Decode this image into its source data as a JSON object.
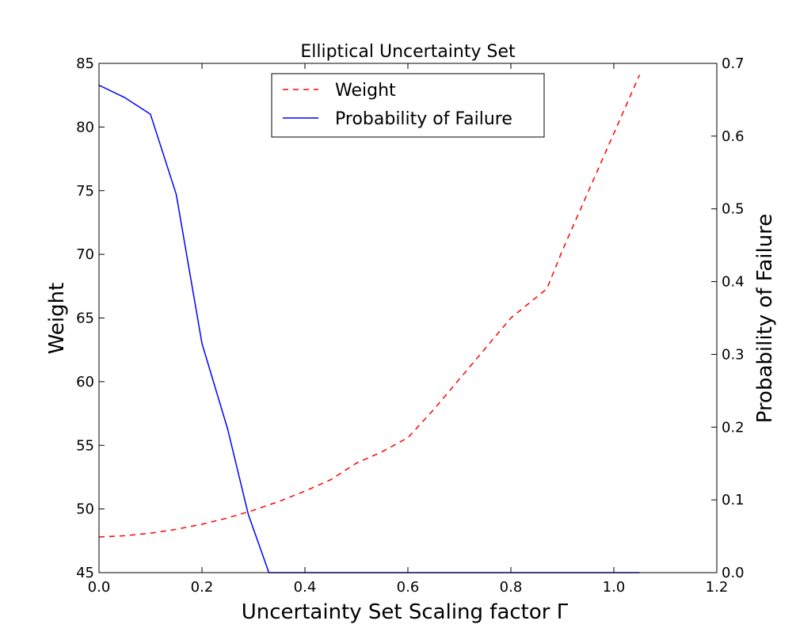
{
  "chart_data": {
    "type": "line",
    "title": "Elliptical Uncertainty Set",
    "xlabel": "Uncertainty Set Scaling factor Γ",
    "ylabel_left": "Weight",
    "ylabel_right": "Probability of Failure",
    "xlim": [
      0.0,
      1.2
    ],
    "ylim_left": [
      45,
      85
    ],
    "ylim_right": [
      0.0,
      0.7
    ],
    "x_ticks": [
      "0.0",
      "0.2",
      "0.4",
      "0.6",
      "0.8",
      "1.0",
      "1.2"
    ],
    "y_left_ticks": [
      "45",
      "50",
      "55",
      "60",
      "65",
      "70",
      "75",
      "80",
      "85"
    ],
    "y_right_ticks": [
      "0.0",
      "0.1",
      "0.2",
      "0.3",
      "0.4",
      "0.5",
      "0.6",
      "0.7"
    ],
    "grid": false,
    "legend_position": "top-center",
    "series": [
      {
        "name": "Weight",
        "axis": "left",
        "color": "#ff0000",
        "style": "dashed",
        "x": [
          0.0,
          0.05,
          0.1,
          0.15,
          0.2,
          0.25,
          0.3,
          0.35,
          0.4,
          0.45,
          0.5,
          0.55,
          0.6,
          0.65,
          0.7,
          0.75,
          0.8,
          0.87,
          0.9,
          0.95,
          1.0,
          1.05
        ],
        "values": [
          47.8,
          47.9,
          48.1,
          48.4,
          48.8,
          49.3,
          49.9,
          50.6,
          51.4,
          52.3,
          53.6,
          54.5,
          55.6,
          57.8,
          60.2,
          62.6,
          65.0,
          67.3,
          70.3,
          74.9,
          79.5,
          84.1
        ]
      },
      {
        "name": "Probability of Failure",
        "axis": "right",
        "color": "#0000ff",
        "style": "solid",
        "x": [
          0.0,
          0.05,
          0.1,
          0.15,
          0.2,
          0.25,
          0.29,
          0.33,
          0.4,
          0.6,
          0.8,
          1.0,
          1.05
        ],
        "values": [
          0.67,
          0.653,
          0.63,
          0.52,
          0.315,
          0.197,
          0.08,
          0.0,
          0.0,
          0.0,
          0.0,
          0.0,
          0.0
        ]
      }
    ]
  }
}
